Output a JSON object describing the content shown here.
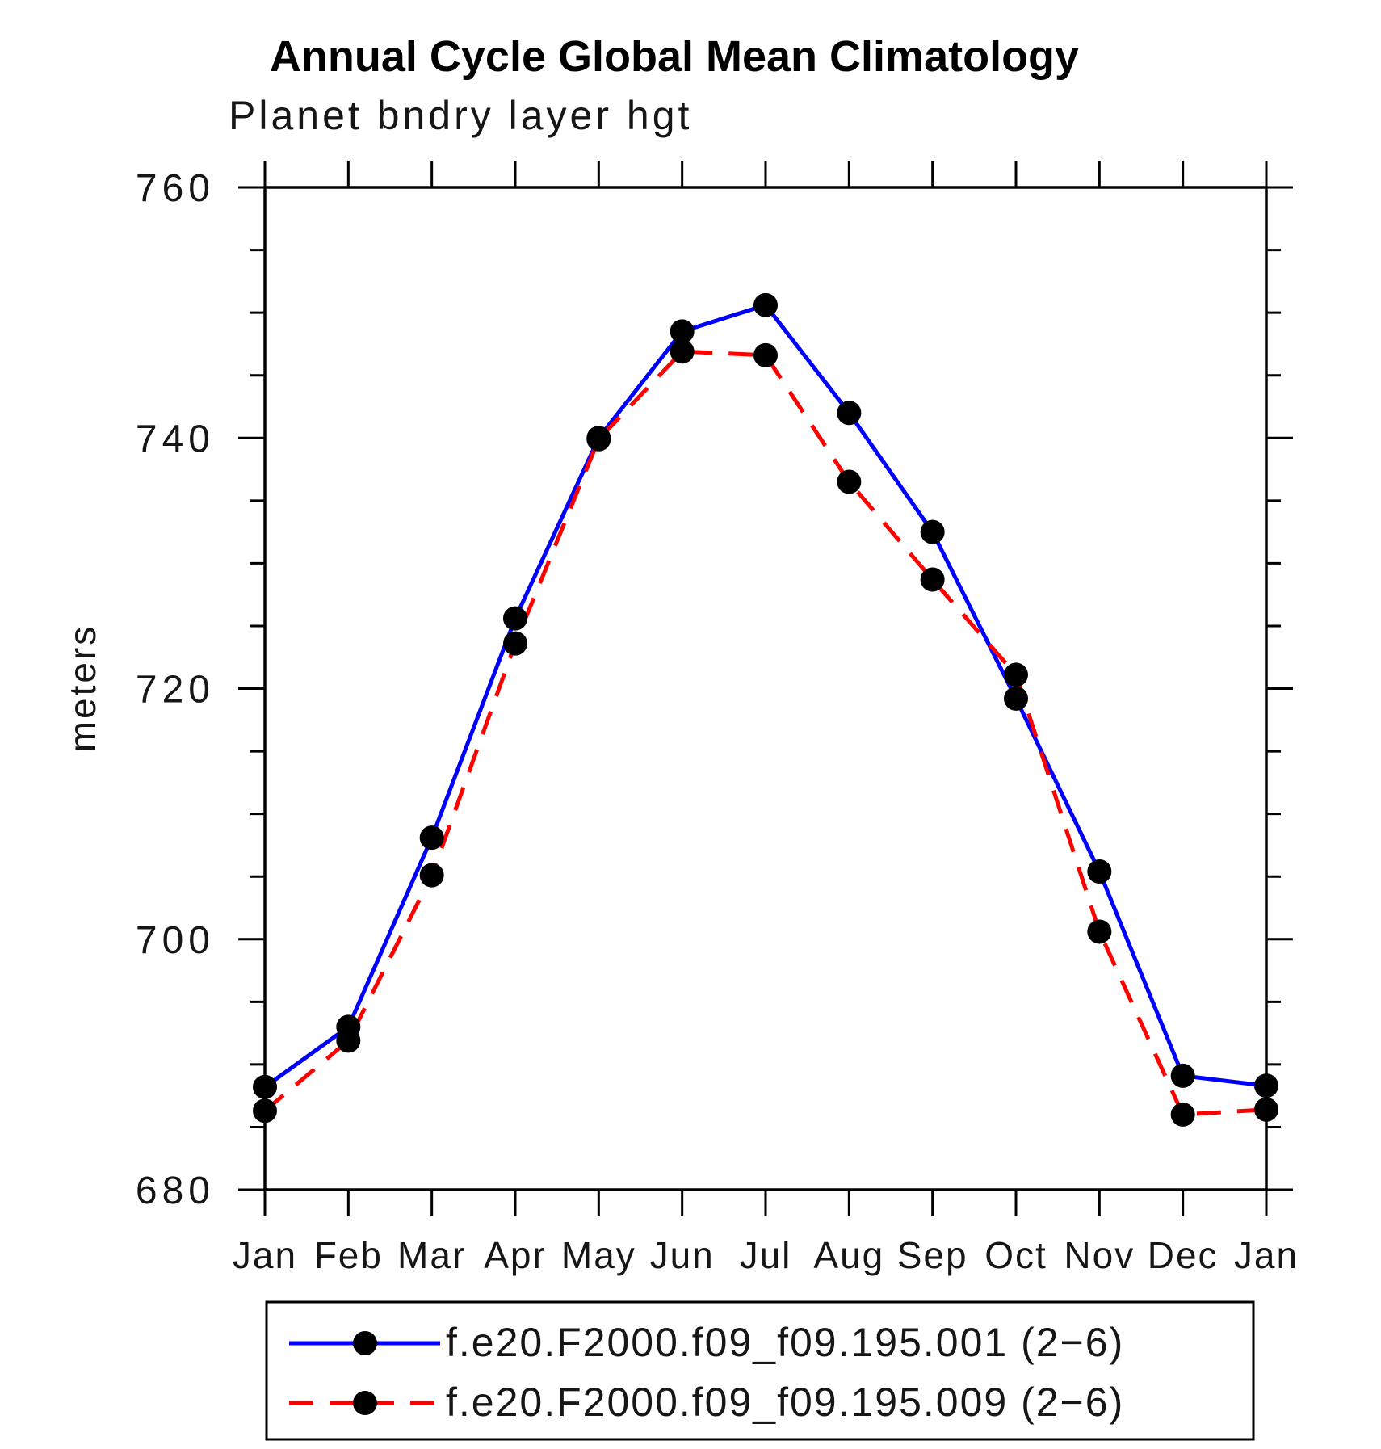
{
  "title": "Annual Cycle Global Mean Climatology",
  "subtitle": "Planet bndry layer hgt",
  "ylabel": "meters",
  "chart_data": {
    "type": "line",
    "categories": [
      "Jan",
      "Feb",
      "Mar",
      "Apr",
      "May",
      "Jun",
      "Jul",
      "Aug",
      "Sep",
      "Oct",
      "Nov",
      "Dec",
      "Jan"
    ],
    "xlabel": "",
    "ylabel": "meters",
    "ylim": [
      680,
      760
    ],
    "ytick_major": [
      680,
      700,
      720,
      740,
      760
    ],
    "ytick_minor_step": 5,
    "grid": false,
    "legend_position": "bottom",
    "frame_color": "#000000",
    "marker_color": "#000000",
    "series": [
      {
        "name": "f.e20.F2000.f09_f09.195.001 (2−6)",
        "color": "#0000ff",
        "style": "solid",
        "values": [
          688.2,
          693.0,
          708.1,
          725.6,
          740.0,
          748.5,
          750.6,
          742.0,
          732.5,
          719.2,
          705.4,
          689.1,
          688.3
        ]
      },
      {
        "name": "f.e20.F2000.f09_f09.195.009 (2−6)",
        "color": "#ff0000",
        "style": "dashed",
        "values": [
          686.3,
          691.9,
          705.1,
          723.6,
          739.9,
          746.9,
          746.6,
          736.5,
          728.7,
          721.1,
          700.6,
          686.0,
          686.4
        ]
      }
    ]
  }
}
